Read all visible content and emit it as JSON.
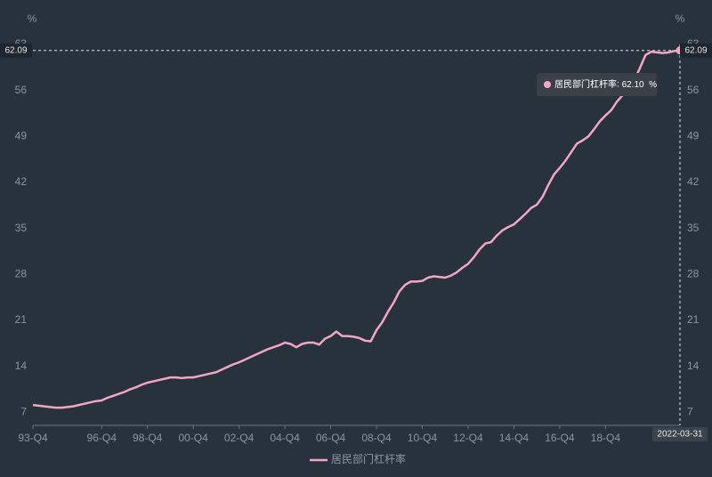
{
  "chart_data": {
    "type": "line",
    "yunit": "%",
    "y2unit": "%",
    "categories": [
      "93-Q4",
      null,
      null,
      null,
      null,
      null,
      null,
      null,
      null,
      null,
      null,
      null,
      "96-Q4",
      null,
      null,
      null,
      null,
      null,
      null,
      null,
      "98-Q4",
      null,
      null,
      null,
      null,
      null,
      null,
      null,
      "00-Q4",
      null,
      null,
      null,
      null,
      null,
      null,
      null,
      "02-Q4",
      null,
      null,
      null,
      null,
      null,
      null,
      null,
      "04-Q4",
      null,
      null,
      null,
      null,
      null,
      null,
      null,
      "06-Q4",
      null,
      null,
      null,
      null,
      null,
      null,
      null,
      "08-Q4",
      null,
      null,
      null,
      null,
      null,
      null,
      null,
      "10-Q4",
      null,
      null,
      null,
      null,
      null,
      null,
      null,
      "12-Q4",
      null,
      null,
      null,
      null,
      null,
      null,
      null,
      "14-Q4",
      null,
      null,
      null,
      null,
      null,
      null,
      null,
      "16-Q4",
      null,
      null,
      null,
      null,
      null,
      null,
      null,
      "18-Q4",
      null,
      null,
      null,
      null,
      null,
      null,
      null,
      null,
      null,
      null,
      null,
      null,
      null
    ],
    "series": [
      {
        "name": "居民部门杠杆率",
        "color": "#f2a5c4",
        "axis": "y",
        "values": [
          8.1,
          8.0,
          7.9,
          7.8,
          7.7,
          7.7,
          7.8,
          7.9,
          8.1,
          8.3,
          8.5,
          8.7,
          8.8,
          9.2,
          9.5,
          9.8,
          10.1,
          10.5,
          10.8,
          11.2,
          11.5,
          11.7,
          11.9,
          12.1,
          12.3,
          12.3,
          12.2,
          12.3,
          12.3,
          12.5,
          12.7,
          12.9,
          13.1,
          13.5,
          13.9,
          14.3,
          14.6,
          15.0,
          15.4,
          15.8,
          16.2,
          16.6,
          16.9,
          17.2,
          17.6,
          17.4,
          16.9,
          17.4,
          17.6,
          17.6,
          17.3,
          18.2,
          18.6,
          19.3,
          18.6,
          18.6,
          18.5,
          18.3,
          17.9,
          17.8,
          19.5,
          20.7,
          22.3,
          23.7,
          25.4,
          26.4,
          26.9,
          26.9,
          27.0,
          27.5,
          27.7,
          27.6,
          27.5,
          27.8,
          28.3,
          29.0,
          29.6,
          30.6,
          31.8,
          32.7,
          32.9,
          33.9,
          34.7,
          35.2,
          35.6,
          36.4,
          37.2,
          38.1,
          38.6,
          39.8,
          41.6,
          43.2,
          44.2,
          45.3,
          46.6,
          47.9,
          48.4,
          49.0,
          50.1,
          51.3,
          52.2,
          53.0,
          54.3,
          55.3,
          56.2,
          57.5,
          59.4,
          61.4,
          61.9,
          61.8,
          61.7,
          61.8,
          62.0,
          62.1
        ]
      }
    ],
    "ylim": [
      5,
      63
    ],
    "yticks": [
      7,
      14,
      21,
      28,
      35,
      42,
      49,
      56,
      63
    ],
    "y2lim": [
      5,
      63
    ],
    "y2ticks": [
      7,
      14,
      21,
      28,
      35,
      42,
      49,
      56,
      63
    ],
    "grid": false,
    "pointer": {
      "y": 62.09,
      "x_label": "2022-03-31"
    },
    "tooltip": {
      "value": 62.1,
      "value_label": "62.10",
      "unit": "%"
    }
  }
}
